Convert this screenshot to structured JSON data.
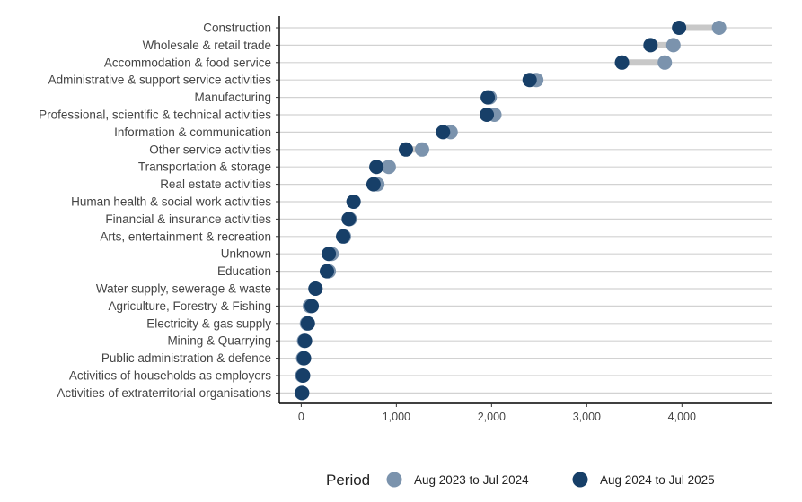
{
  "chart_data": {
    "type": "dumbbell",
    "xlabel": "",
    "ylabel": "",
    "xlim": [
      -230,
      4950
    ],
    "xticks": [
      0,
      1000,
      2000,
      3000,
      4000
    ],
    "xtick_labels": [
      "0",
      "1,000",
      "2,000",
      "3,000",
      "4,000"
    ],
    "legend": {
      "title": "Period",
      "placement": "bottom",
      "entries": [
        "Aug 2023 to Jul 2024",
        "Aug 2024 to Jul 2025"
      ]
    },
    "colors": {
      "period1": "#7b93ad",
      "period2": "#173f68",
      "connector": "#c8c8c8",
      "gridline": "#d2d2d2",
      "axis": "#000000"
    },
    "categories": [
      "Construction",
      "Wholesale & retail trade",
      "Accommodation & food service",
      "Administrative & support service activities",
      "Manufacturing",
      "Professional, scientific & technical activities",
      "Information & communication",
      "Other service activities",
      "Transportation & storage",
      "Real estate activities",
      "Human health & social work activities",
      "Financial & insurance activities",
      "Arts, entertainment & recreation",
      "Unknown",
      "Education",
      "Water supply, sewerage & waste",
      "Agriculture, Forestry & Fishing",
      "Electricity & gas supply",
      "Mining & Quarrying",
      "Public administration & defence",
      "Activities of households as employers",
      "Activities of extraterritorial organisations"
    ],
    "series": [
      {
        "name": "Aug 2023 to Jul 2024",
        "values": [
          4390,
          3910,
          3820,
          2470,
          1980,
          2030,
          1570,
          1270,
          920,
          800,
          550,
          510,
          450,
          320,
          290,
          150,
          90,
          60,
          30,
          20,
          10,
          5
        ]
      },
      {
        "name": "Aug 2024 to Jul 2025",
        "values": [
          3970,
          3670,
          3370,
          2400,
          1960,
          1950,
          1490,
          1100,
          790,
          760,
          550,
          500,
          440,
          290,
          270,
          150,
          110,
          70,
          40,
          30,
          20,
          10
        ]
      }
    ]
  }
}
